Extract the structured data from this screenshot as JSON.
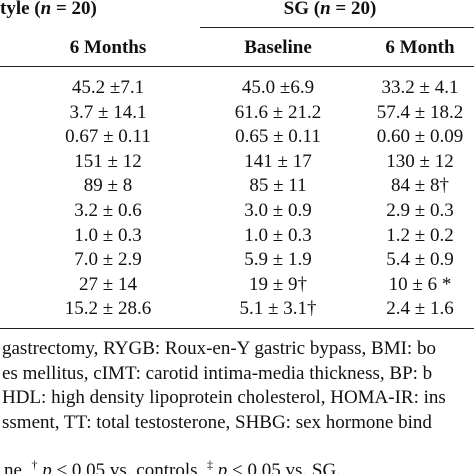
{
  "header": {
    "groups": [
      [
        "tyle (",
        "n",
        " = 20)"
      ],
      [
        "SG (",
        "n",
        " = 20)"
      ]
    ],
    "columns": [
      "6 Months",
      "Baseline",
      "6 Month"
    ]
  },
  "table": {
    "rows": [
      [
        "45.2 ±7.1",
        "45.0 ±6.9",
        "33.2 ± 4.1"
      ],
      [
        "3.7 ± 14.1",
        "61.6 ± 21.2",
        "57.4 ± 18.2"
      ],
      [
        "0.67 ± 0.11",
        "0.65 ± 0.11",
        "0.60 ± 0.09"
      ],
      [
        "151 ± 12",
        "141 ± 17",
        "130 ± 12"
      ],
      [
        "89 ± 8",
        "85 ± 11",
        "84 ± 8†"
      ],
      [
        "3.2 ± 0.6",
        "3.0 ± 0.9",
        "2.9 ± 0.3"
      ],
      [
        "1.0 ± 0.3",
        "1.0 ± 0.3",
        "1.2 ± 0.2"
      ],
      [
        "7.0 ± 2.9",
        "5.9 ± 1.9",
        "5.4 ± 0.9"
      ],
      [
        "27 ± 14",
        "19 ± 9†",
        "10 ± 6 *"
      ],
      [
        "15.2 ± 28.6",
        "5.1 ± 3.1†",
        "2.4 ± 1.6"
      ]
    ]
  },
  "footnotes": {
    "lines": [
      "gastrectomy, RYGB: Roux-en-Y gastric bypass, BMI: bo",
      "es mellitus, cIMT: carotid intima-media thickness, BP: b",
      "HDL: high density lipoprotein cholesterol, HOMA-IR: ins",
      "ssment, TT: total testosterone, SHBG: sex hormone bind"
    ],
    "last": [
      "ne, ",
      "†",
      "p",
      " < 0.05 vs. controls, ",
      "‡",
      "p",
      " < 0.05 vs. SG."
    ]
  }
}
